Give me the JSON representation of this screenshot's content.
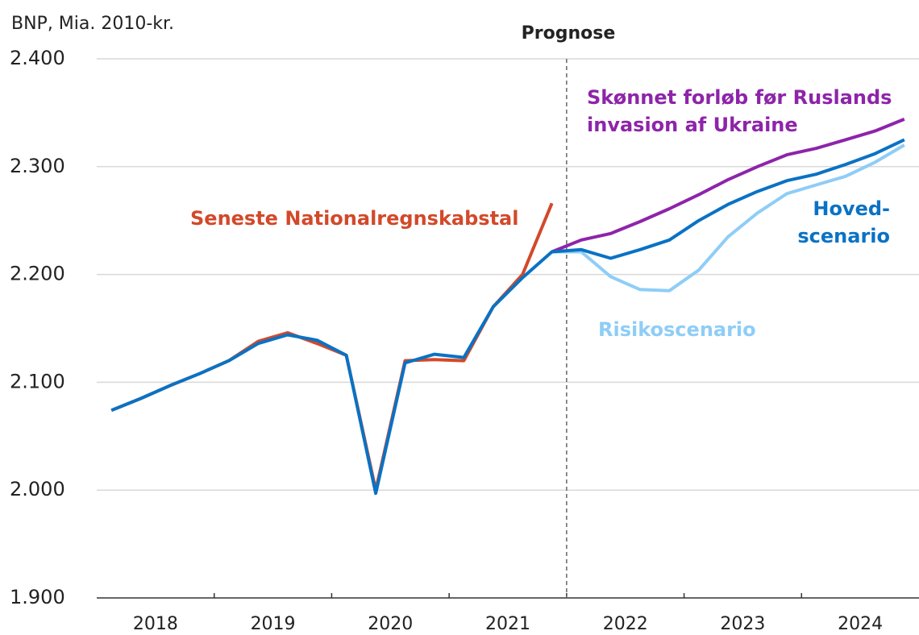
{
  "chart_data": {
    "type": "line",
    "y_axis_label": "BNP, Mia. 2010-kr.",
    "forecast_label": "Prognose",
    "forecast_start": 2022,
    "x": [
      2018.125,
      2018.375,
      2018.625,
      2018.875,
      2019.125,
      2019.375,
      2019.625,
      2019.875,
      2020.125,
      2020.375,
      2020.625,
      2020.875,
      2021.125,
      2021.375,
      2021.625,
      2021.875,
      2022.125,
      2022.375,
      2022.625,
      2022.875,
      2023.125,
      2023.375,
      2023.625,
      2023.875,
      2024.125,
      2024.375,
      2024.625,
      2024.875
    ],
    "xlim": [
      2018,
      2025
    ],
    "xticks": [
      {
        "value": 2018.5,
        "label": "2018"
      },
      {
        "value": 2019.5,
        "label": "2019"
      },
      {
        "value": 2020.5,
        "label": "2020"
      },
      {
        "value": 2021.5,
        "label": "2021"
      },
      {
        "value": 2022.5,
        "label": "2022"
      },
      {
        "value": 2023.5,
        "label": "2023"
      },
      {
        "value": 2024.5,
        "label": "2024"
      }
    ],
    "xtick_marks": [
      2019,
      2020,
      2021,
      2022,
      2023,
      2024
    ],
    "ylim": [
      1900,
      2400
    ],
    "yticks": [
      {
        "value": 1900,
        "label": "1.900"
      },
      {
        "value": 2000,
        "label": "2.000"
      },
      {
        "value": 2100,
        "label": "2.100"
      },
      {
        "value": 2200,
        "label": "2.200"
      },
      {
        "value": 2300,
        "label": "2.300"
      },
      {
        "value": 2400,
        "label": "2.400"
      }
    ],
    "grid": true,
    "series": [
      {
        "name": "Seneste Nationalregnskabstal",
        "color": "#d2492a",
        "values": [
          2074,
          2085,
          2097,
          2108,
          2120,
          2138,
          2146,
          2136,
          2125,
          2000,
          2120,
          2121,
          2120,
          2170,
          2200,
          2266,
          null,
          null,
          null,
          null,
          null,
          null,
          null,
          null,
          null,
          null,
          null,
          null
        ]
      },
      {
        "name": "Skønnet forløb før Ruslands\ninvasion af Ukraine",
        "color": "#8e24aa",
        "values": [
          null,
          null,
          null,
          null,
          null,
          null,
          null,
          null,
          null,
          null,
          null,
          null,
          null,
          null,
          null,
          2221,
          2232,
          2238,
          2249,
          2261,
          2274,
          2288,
          2300,
          2311,
          2317,
          2325,
          2333,
          2344
        ]
      },
      {
        "name": "Risikoscenario",
        "color": "#8ecdf7",
        "values": [
          null,
          null,
          null,
          null,
          null,
          null,
          null,
          null,
          null,
          null,
          null,
          null,
          null,
          null,
          null,
          2221,
          2221,
          2198,
          2186,
          2185,
          2204,
          2235,
          2257,
          2275,
          2283,
          2291,
          2304,
          2320
        ]
      },
      {
        "name": "Hoved-\nscenario",
        "color": "#0a72c4",
        "values": [
          2074,
          2085,
          2097,
          2108,
          2120,
          2136,
          2144,
          2139,
          2125,
          1997,
          2118,
          2126,
          2123,
          2170,
          2197,
          2221,
          2223,
          2215,
          2223,
          2232,
          2250,
          2265,
          2277,
          2287,
          2293,
          2302,
          2312,
          2325
        ]
      }
    ]
  }
}
